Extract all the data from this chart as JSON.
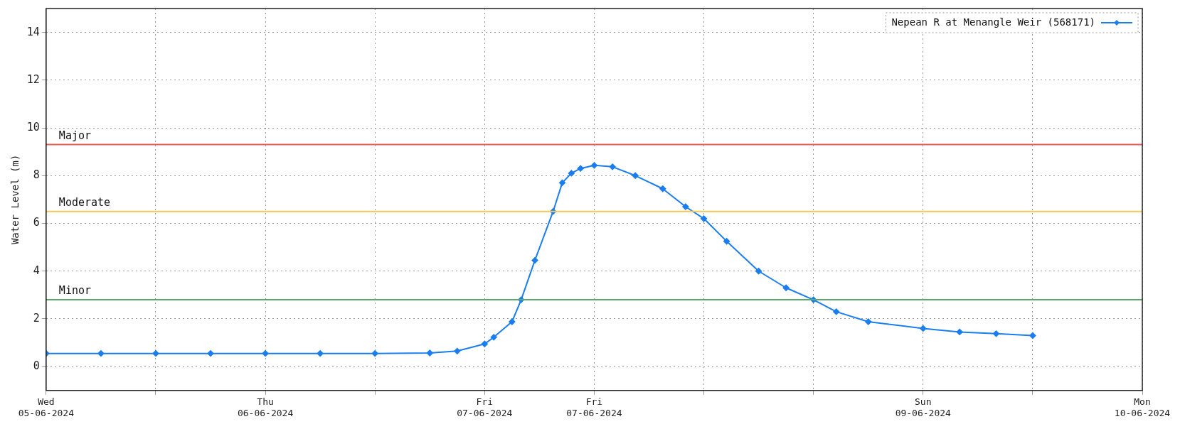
{
  "chart_data": {
    "type": "line",
    "ylabel": "Water Level (m)",
    "xlim": [
      "2024-06-05T00:00",
      "2024-06-10T00:00"
    ],
    "xticks": [
      {
        "value": "2024-06-05T00:00",
        "label": "Wed\n05-06-2024"
      },
      {
        "value": "2024-06-05T12:00",
        "label": null
      },
      {
        "value": "2024-06-06T00:00",
        "label": "Thu\n06-06-2024"
      },
      {
        "value": "2024-06-06T12:00",
        "label": null
      },
      {
        "value": "2024-06-07T00:00",
        "label": "Fri\n07-06-2024"
      },
      {
        "value": "2024-06-07T12:00",
        "label": "Fri\n07-06-2024"
      },
      {
        "value": "2024-06-08T00:00",
        "label": null
      },
      {
        "value": "2024-06-08T12:00",
        "label": null
      },
      {
        "value": "2024-06-09T00:00",
        "label": "Sun\n09-06-2024"
      },
      {
        "value": "2024-06-09T12:00",
        "label": null
      },
      {
        "value": "2024-06-10T00:00",
        "label": "Mon\n10-06-2024"
      }
    ],
    "ylim": [
      -1,
      15
    ],
    "yticks": [
      0,
      2,
      4,
      6,
      8,
      10,
      12,
      14
    ],
    "grid": true,
    "legend": "top right",
    "marker": "diamond",
    "line_style": "solid",
    "ref_lines": [
      {
        "axis": "y",
        "value": 9.3,
        "label": "Major",
        "color": "#e85a5a"
      },
      {
        "axis": "y",
        "value": 6.5,
        "label": "Moderate",
        "color": "#f5c85a"
      },
      {
        "axis": "y",
        "value": 2.8,
        "label": "Minor",
        "color": "#5aa86e"
      }
    ],
    "series": [
      {
        "name": "Nepean R at Menangle Weir (568171)",
        "color": "#1a7ef0",
        "x": [
          "2024-06-05T00:00",
          "2024-06-05T06:00",
          "2024-06-05T12:00",
          "2024-06-05T18:00",
          "2024-06-06T00:00",
          "2024-06-06T06:00",
          "2024-06-06T12:00",
          "2024-06-06T18:00",
          "2024-06-06T21:00",
          "2024-06-07T00:00",
          "2024-06-07T01:00",
          "2024-06-07T03:00",
          "2024-06-07T04:00",
          "2024-06-07T05:30",
          "2024-06-07T07:30",
          "2024-06-07T08:30",
          "2024-06-07T09:30",
          "2024-06-07T10:30",
          "2024-06-07T12:00",
          "2024-06-07T14:00",
          "2024-06-07T16:30",
          "2024-06-07T19:30",
          "2024-06-07T22:00",
          "2024-06-08T00:00",
          "2024-06-08T02:30",
          "2024-06-08T06:00",
          "2024-06-08T09:00",
          "2024-06-08T12:00",
          "2024-06-08T14:30",
          "2024-06-08T18:00",
          "2024-06-09T00:00",
          "2024-06-09T04:00",
          "2024-06-09T08:00",
          "2024-06-09T12:00"
        ],
        "values": [
          0.55,
          0.55,
          0.55,
          0.55,
          0.55,
          0.55,
          0.55,
          0.57,
          0.65,
          0.95,
          1.23,
          1.88,
          2.8,
          4.45,
          6.5,
          7.7,
          8.1,
          8.3,
          8.43,
          8.37,
          8.0,
          7.45,
          6.7,
          6.2,
          5.25,
          4.0,
          3.3,
          2.8,
          2.3,
          1.88,
          1.6,
          1.45,
          1.38,
          1.3
        ]
      }
    ]
  }
}
